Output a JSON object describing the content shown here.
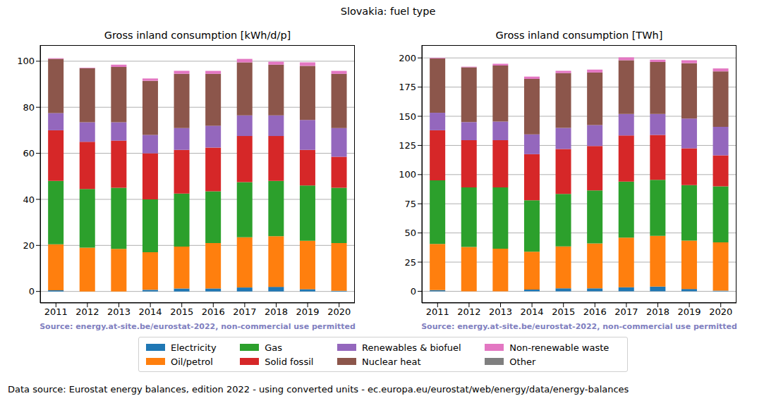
{
  "title": "Slovakia: fuel type",
  "footer": "Data source: Eurostat energy balances, edition 2022 - using converted units - ec.europa.eu/eurostat/web/energy/data/energy-balances",
  "chart_data": [
    {
      "type": "bar",
      "title": "Gross inland consumption [kWh/d/p]",
      "stacked": true,
      "grid": true,
      "legend": "bottom",
      "annotations": [
        "Source: energy.at-site.be/eurostat-2022, non-commercial use permitted"
      ],
      "categories": [
        "2011",
        "2012",
        "2013",
        "2014",
        "2015",
        "2016",
        "2017",
        "2018",
        "2019",
        "2020"
      ],
      "ylim": [
        -5,
        107
      ],
      "yticks": [
        0,
        20,
        40,
        60,
        80,
        100
      ],
      "series": [
        {
          "name": "Electricity",
          "color": "#1f77b4",
          "values": [
            0.5,
            0,
            0,
            0.7,
            1.3,
            1.3,
            1.7,
            2,
            1,
            0.3
          ]
        },
        {
          "name": "Oil/petrol",
          "color": "#ff7f0e",
          "values": [
            20,
            19,
            18.5,
            16.3,
            18.2,
            19.7,
            21.8,
            22,
            21,
            20.7
          ]
        },
        {
          "name": "Gas",
          "color": "#2ca02c",
          "values": [
            27.5,
            25.5,
            26.5,
            23,
            23,
            22.5,
            24,
            24,
            24,
            24
          ]
        },
        {
          "name": "Solid fossil",
          "color": "#d62728",
          "values": [
            22,
            20.5,
            20.5,
            20,
            19,
            19,
            20,
            19.5,
            15.5,
            13.5
          ]
        },
        {
          "name": "Renewables & biofuel",
          "color": "#9467bd",
          "values": [
            7.5,
            8.5,
            8,
            8,
            9.5,
            9.5,
            9,
            9,
            13,
            12.5
          ]
        },
        {
          "name": "Nuclear heat",
          "color": "#8c564b",
          "values": [
            23.5,
            23.5,
            24,
            23.5,
            23.5,
            22.5,
            23,
            22,
            23.5,
            23.5
          ]
        },
        {
          "name": "Non-renewable waste",
          "color": "#e377c2",
          "values": [
            0.3,
            0.2,
            1,
            1,
            1.3,
            1.3,
            1.5,
            1.3,
            1.5,
            1.3
          ]
        },
        {
          "name": "Other",
          "color": "#7f7f7f",
          "values": [
            0,
            0,
            0,
            0,
            0,
            0,
            0,
            0,
            0,
            0
          ]
        }
      ]
    },
    {
      "type": "bar",
      "title": "Gross inland consumption [TWh]",
      "stacked": true,
      "grid": true,
      "legend": "bottom",
      "annotations": [
        "Source: energy.at-site.be/eurostat-2022, non-commercial use permitted"
      ],
      "categories": [
        "2011",
        "2012",
        "2013",
        "2014",
        "2015",
        "2016",
        "2017",
        "2018",
        "2019",
        "2020"
      ],
      "ylim": [
        -10,
        211
      ],
      "yticks": [
        0,
        25,
        50,
        75,
        100,
        125,
        150,
        175,
        200
      ],
      "series": [
        {
          "name": "Electricity",
          "color": "#1f77b4",
          "values": [
            1,
            0,
            0,
            1.5,
            2.5,
            2.5,
            3.5,
            4,
            2,
            0.5
          ]
        },
        {
          "name": "Oil/petrol",
          "color": "#ff7f0e",
          "values": [
            39.5,
            38,
            36.5,
            32.5,
            36,
            38.5,
            42.5,
            43.5,
            41.5,
            41.5
          ]
        },
        {
          "name": "Gas",
          "color": "#2ca02c",
          "values": [
            54.5,
            51,
            52.5,
            44,
            45,
            45.5,
            48,
            48,
            47.5,
            48
          ]
        },
        {
          "name": "Solid fossil",
          "color": "#d62728",
          "values": [
            43,
            40.5,
            40.5,
            39.5,
            38.5,
            38,
            39.5,
            38.5,
            31.5,
            26.5
          ]
        },
        {
          "name": "Renewables & biofuel",
          "color": "#9467bd",
          "values": [
            15,
            15.5,
            16,
            17,
            18,
            18,
            18.5,
            18,
            25.5,
            24.5
          ]
        },
        {
          "name": "Nuclear heat",
          "color": "#8c564b",
          "values": [
            46.5,
            47,
            48,
            47.5,
            47,
            45,
            46,
            44.5,
            47.5,
            47.5
          ]
        },
        {
          "name": "Non-renewable waste",
          "color": "#e377c2",
          "values": [
            0.5,
            0.5,
            1.5,
            2,
            2,
            2.5,
            2.5,
            2,
            2.5,
            2.5
          ]
        },
        {
          "name": "Other",
          "color": "#7f7f7f",
          "values": [
            0,
            0,
            0,
            0,
            0,
            0,
            0,
            0,
            0,
            0
          ]
        }
      ]
    }
  ]
}
